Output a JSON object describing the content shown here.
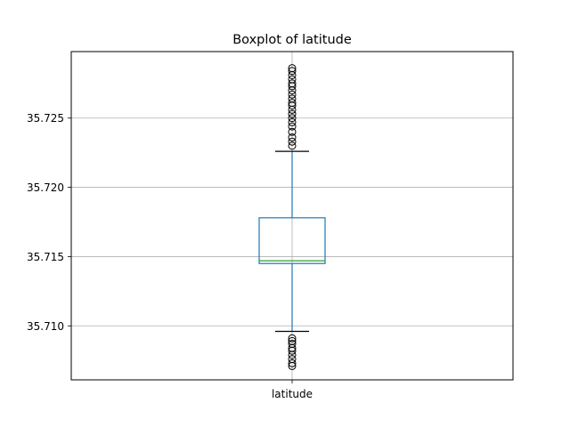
{
  "chart_data": {
    "type": "box",
    "title": "Boxplot of latitude",
    "categories": [
      "latitude"
    ],
    "ylim": [
      35.7061,
      35.7298
    ],
    "yticks": [
      35.71,
      35.715,
      35.72,
      35.725
    ],
    "ytick_labels": [
      "35.710",
      "35.715",
      "35.720",
      "35.725"
    ],
    "grid": true,
    "series": [
      {
        "name": "latitude",
        "whisker_low": 35.7096,
        "q1": 35.7145,
        "median": 35.7147,
        "q3": 35.7178,
        "whisker_high": 35.7226,
        "outliers": [
          35.7071,
          35.7073,
          35.7076,
          35.7079,
          35.7082,
          35.7084,
          35.7087,
          35.7089,
          35.7091,
          35.723,
          35.7233,
          35.7236,
          35.724,
          35.7244,
          35.7247,
          35.725,
          35.7253,
          35.7256,
          35.7259,
          35.7261,
          35.7264,
          35.7267,
          35.727,
          35.7273,
          35.7275,
          35.7278,
          35.7281,
          35.7284,
          35.7286
        ]
      }
    ],
    "colors": {
      "box": "#1f77b4",
      "median": "#2ca02c",
      "whisker_cap": "#000000",
      "outlier": "#000000",
      "grid": "#b0b0b0"
    }
  }
}
